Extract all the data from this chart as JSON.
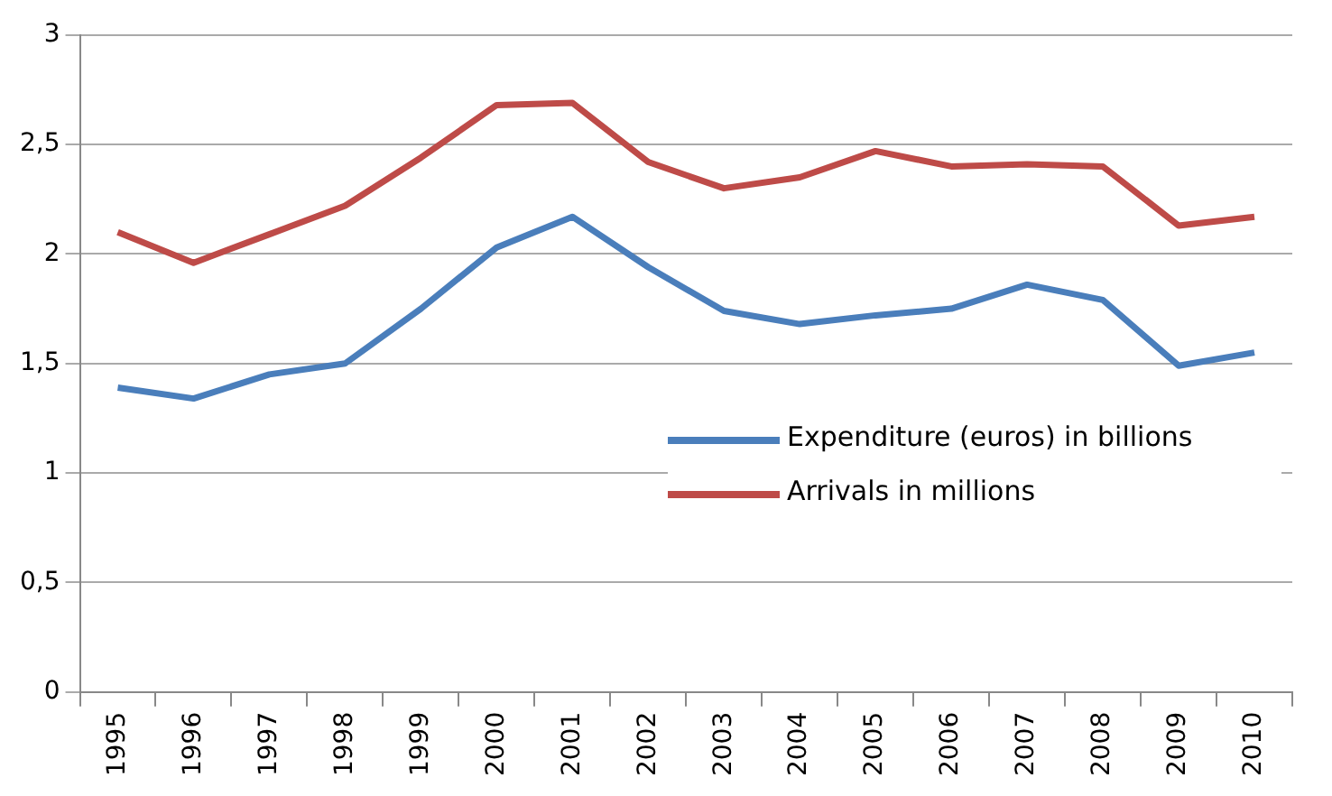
{
  "chart_data": {
    "type": "line",
    "categories": [
      "1995",
      "1996",
      "1997",
      "1998",
      "1999",
      "2000",
      "2001",
      "2002",
      "2003",
      "2004",
      "2005",
      "2006",
      "2007",
      "2008",
      "2009",
      "2010"
    ],
    "series": [
      {
        "name": "Expenditure (euros) in billions",
        "color": "#4a7ebb",
        "values": [
          1.39,
          1.34,
          1.45,
          1.5,
          1.75,
          2.03,
          2.17,
          1.94,
          1.74,
          1.68,
          1.72,
          1.75,
          1.86,
          1.79,
          1.49,
          1.55
        ]
      },
      {
        "name": "Arrivals in millions",
        "color": "#be4b48",
        "values": [
          2.1,
          1.96,
          2.09,
          2.22,
          2.44,
          2.68,
          2.69,
          2.42,
          2.3,
          2.35,
          2.47,
          2.4,
          2.41,
          2.4,
          2.13,
          2.17
        ]
      }
    ],
    "ylim": [
      0,
      3
    ],
    "yticks": [
      0,
      {
        "value": 0.5,
        "label": "0,5"
      },
      1,
      {
        "value": 1.5,
        "label": "1,5"
      },
      2,
      {
        "value": 2.5,
        "label": "2,5"
      },
      3
    ],
    "grid": "y",
    "legend": "right",
    "marker": "none",
    "line_style": "solid"
  }
}
